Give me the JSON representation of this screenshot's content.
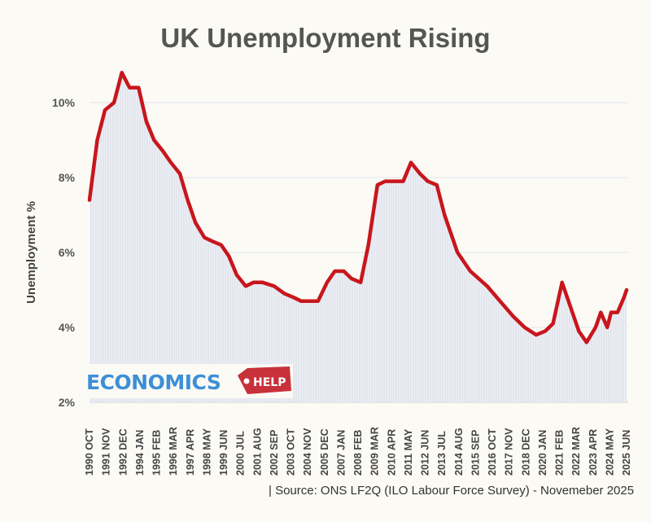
{
  "chart_data": {
    "type": "line",
    "title": "UK Unemployment Rising",
    "ylabel": "Unemployment %",
    "xlabel": "",
    "ylim": [
      2,
      11
    ],
    "yticks": [
      "2%",
      "4%",
      "6%",
      "8%",
      "10%"
    ],
    "ytick_values": [
      2,
      4,
      6,
      8,
      10
    ],
    "grid": "horizontal",
    "xticks": [
      "1990 OCT",
      "1991 NOV",
      "1992 DEC",
      "1994 JAN",
      "1995 FEB",
      "1996 MAR",
      "1997 APR",
      "1998 MAY",
      "1999 JUN",
      "2000 JUL",
      "2001 AUG",
      "2002 SEP",
      "2003 OCT",
      "2004 NOV",
      "2005 DEC",
      "2007 JAN",
      "2008 FEB",
      "2009 MAR",
      "2010 APR",
      "2011 MAY",
      "2012 JUN",
      "2013 JUL",
      "2014 AUG",
      "2015 SEP",
      "2016 OCT",
      "2017 NOV",
      "2018 DEC",
      "2020 JAN",
      "2021 FEB",
      "2022 MAR",
      "2023 APR",
      "2024 MAY",
      "2025 JUN"
    ],
    "series": [
      {
        "color": "#c8161d",
        "x": [
          "1990-10",
          "1991-04",
          "1991-10",
          "1992-05",
          "1992-11",
          "1993-05",
          "1993-12",
          "1994-06",
          "1994-12",
          "1995-07",
          "1996-01",
          "1996-08",
          "1997-02",
          "1997-08",
          "1998-03",
          "1998-09",
          "1999-04",
          "1999-10",
          "2000-04",
          "2000-11",
          "2001-05",
          "2001-12",
          "2002-09",
          "2003-05",
          "2003-12",
          "2004-06",
          "2005-07",
          "2006-02",
          "2006-08",
          "2007-03",
          "2007-09",
          "2008-04",
          "2008-10",
          "2009-05",
          "2009-11",
          "2010-06",
          "2011-01",
          "2011-07",
          "2012-02",
          "2012-08",
          "2013-03",
          "2013-09",
          "2014-07",
          "2015-05",
          "2016-06",
          "2017-04",
          "2018-02",
          "2018-11",
          "2019-08",
          "2020-03",
          "2020-09",
          "2021-04",
          "2021-10",
          "2022-05",
          "2022-11",
          "2023-06",
          "2023-10",
          "2024-03",
          "2024-06",
          "2024-11",
          "2025-04",
          "2025-06"
        ],
        "values": [
          7.4,
          9.0,
          9.8,
          10.0,
          10.8,
          10.4,
          10.4,
          9.5,
          9.0,
          8.7,
          8.4,
          8.1,
          7.4,
          6.8,
          6.4,
          6.3,
          6.2,
          5.9,
          5.4,
          5.1,
          5.2,
          5.2,
          5.1,
          4.9,
          4.8,
          4.7,
          4.7,
          5.2,
          5.5,
          5.5,
          5.3,
          5.2,
          6.2,
          7.8,
          7.9,
          7.9,
          7.9,
          8.4,
          8.1,
          7.9,
          7.8,
          7.0,
          6.0,
          5.5,
          5.1,
          4.7,
          4.3,
          4.0,
          3.8,
          3.9,
          4.1,
          5.2,
          4.6,
          3.9,
          3.6,
          4.0,
          4.4,
          4.0,
          4.4,
          4.4,
          4.8,
          5.0
        ]
      }
    ]
  },
  "source": "| Source: ONS LF2Q (ILO Labour Force Survey) - Novemeber 2025",
  "logo": {
    "text_left": "ECONOMICS",
    "text_right": "HELP"
  }
}
